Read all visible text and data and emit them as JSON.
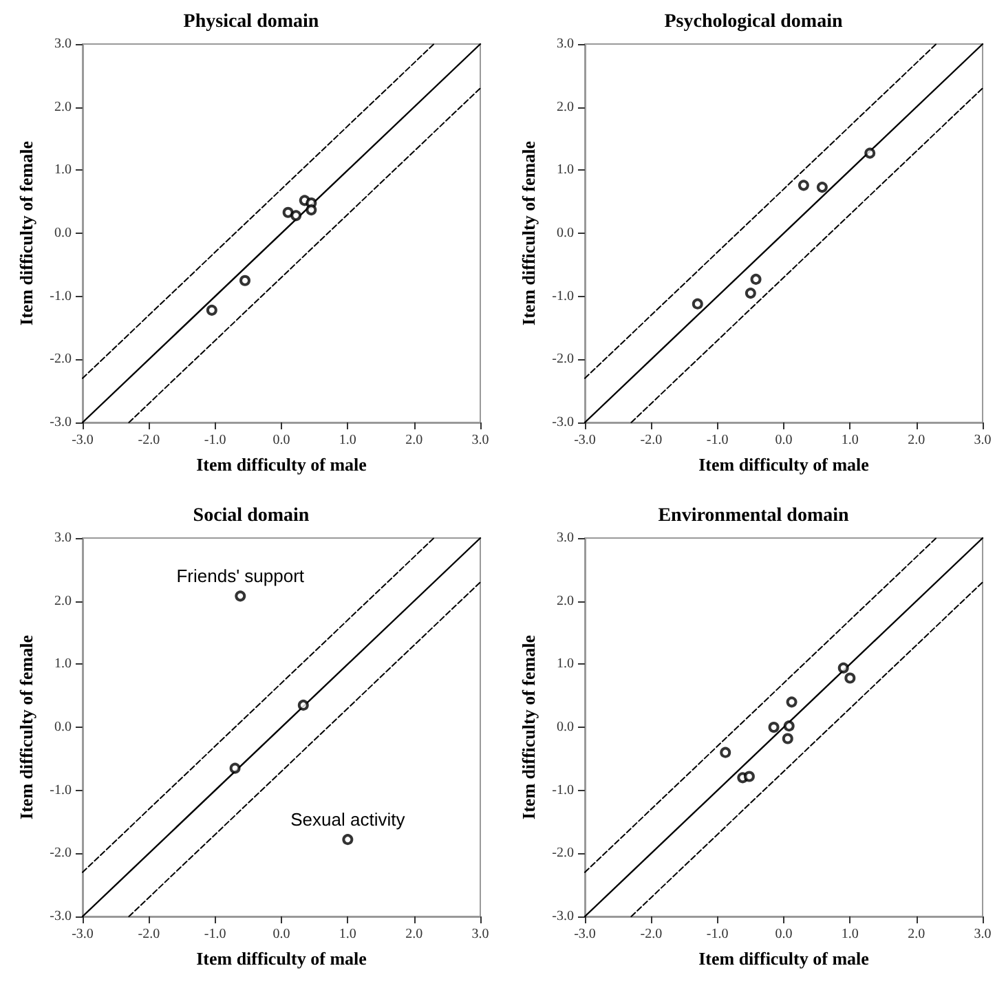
{
  "chart_data": [
    {
      "type": "scatter",
      "title": "Physical domain",
      "xlabel": "Item difficulty of male",
      "ylabel": "Item difficulty of female",
      "xlim": [
        -3,
        3
      ],
      "ylim": [
        -3,
        3
      ],
      "xticks": [
        {
          "value": -3,
          "label": "-3.0"
        },
        {
          "value": -2,
          "label": "-2.0"
        },
        {
          "value": -1,
          "label": "-1.0"
        },
        {
          "value": 0,
          "label": "0.0"
        },
        {
          "value": 1,
          "label": "1.0"
        },
        {
          "value": 2,
          "label": "2.0"
        },
        {
          "value": 3,
          "label": "3.0"
        }
      ],
      "yticks": [
        {
          "value": -3,
          "label": "-3.0"
        },
        {
          "value": -2,
          "label": "-2.0"
        },
        {
          "value": -1,
          "label": "-1.0"
        },
        {
          "value": 0,
          "label": "0.0"
        },
        {
          "value": 1,
          "label": "1.0"
        },
        {
          "value": 2,
          "label": "2.0"
        },
        {
          "value": 3,
          "label": "3.0"
        }
      ],
      "grid": false,
      "series": [
        {
          "marker": "circle",
          "color": "#000000",
          "x": [
            -1.05,
            -0.55,
            0.1,
            0.22,
            0.35,
            0.45,
            0.45
          ],
          "values": [
            -1.22,
            -0.75,
            0.33,
            0.28,
            0.52,
            0.48,
            0.37
          ]
        },
        {
          "type": "line",
          "line_style": "solid",
          "marker": "none",
          "color": "#000000",
          "x": [
            -3,
            3
          ],
          "values": [
            -3,
            3
          ]
        },
        {
          "type": "line",
          "line_style": "dashed",
          "marker": "none",
          "color": "#000000",
          "x": [
            -3,
            2.3
          ],
          "values": [
            -2.3,
            3
          ]
        },
        {
          "type": "line",
          "line_style": "dashed",
          "marker": "none",
          "color": "#000000",
          "x": [
            -2.3,
            3
          ],
          "values": [
            -3,
            2.3
          ]
        }
      ]
    },
    {
      "type": "scatter",
      "title": "Psychological domain",
      "xlabel": "Item difficulty of male",
      "ylabel": "Item difficulty of female",
      "xlim": [
        -3,
        3
      ],
      "ylim": [
        -3,
        3
      ],
      "xticks": [
        {
          "value": -3,
          "label": "-3.0"
        },
        {
          "value": -2,
          "label": "-2.0"
        },
        {
          "value": -1,
          "label": "-1.0"
        },
        {
          "value": 0,
          "label": "0.0"
        },
        {
          "value": 1,
          "label": "1.0"
        },
        {
          "value": 2,
          "label": "2.0"
        },
        {
          "value": 3,
          "label": "3.0"
        }
      ],
      "yticks": [
        {
          "value": -3,
          "label": "-3.0"
        },
        {
          "value": -2,
          "label": "-2.0"
        },
        {
          "value": -1,
          "label": "-1.0"
        },
        {
          "value": 0,
          "label": "0.0"
        },
        {
          "value": 1,
          "label": "1.0"
        },
        {
          "value": 2,
          "label": "2.0"
        },
        {
          "value": 3,
          "label": "3.0"
        }
      ],
      "grid": false,
      "series": [
        {
          "marker": "circle",
          "color": "#000000",
          "x": [
            -1.3,
            -0.5,
            -0.42,
            0.3,
            0.58,
            1.3
          ],
          "values": [
            -1.12,
            -0.95,
            -0.73,
            0.76,
            0.73,
            1.27
          ]
        },
        {
          "type": "line",
          "line_style": "solid",
          "marker": "none",
          "color": "#000000",
          "x": [
            -3,
            3
          ],
          "values": [
            -3,
            3
          ]
        },
        {
          "type": "line",
          "line_style": "dashed",
          "marker": "none",
          "color": "#000000",
          "x": [
            -3,
            2.3
          ],
          "values": [
            -2.3,
            3
          ]
        },
        {
          "type": "line",
          "line_style": "dashed",
          "marker": "none",
          "color": "#000000",
          "x": [
            -2.3,
            3
          ],
          "values": [
            -3,
            2.3
          ]
        }
      ]
    },
    {
      "type": "scatter",
      "title": "Social domain",
      "xlabel": "Item difficulty of male",
      "ylabel": "Item difficulty of female",
      "xlim": [
        -3,
        3
      ],
      "ylim": [
        -3,
        3
      ],
      "xticks": [
        {
          "value": -3,
          "label": "-3.0"
        },
        {
          "value": -2,
          "label": "-2.0"
        },
        {
          "value": -1,
          "label": "-1.0"
        },
        {
          "value": 0,
          "label": "0.0"
        },
        {
          "value": 1,
          "label": "1.0"
        },
        {
          "value": 2,
          "label": "2.0"
        },
        {
          "value": 3,
          "label": "3.0"
        }
      ],
      "yticks": [
        {
          "value": -3,
          "label": "-3.0"
        },
        {
          "value": -2,
          "label": "-2.0"
        },
        {
          "value": -1,
          "label": "-1.0"
        },
        {
          "value": 0,
          "label": "0.0"
        },
        {
          "value": 1,
          "label": "1.0"
        },
        {
          "value": 2,
          "label": "2.0"
        },
        {
          "value": 3,
          "label": "3.0"
        }
      ],
      "grid": false,
      "annotations": [
        {
          "text": "Friends' support",
          "x": -0.62,
          "y": 2.08
        },
        {
          "text": "Sexual activity",
          "x": 1.0,
          "y": -1.78
        }
      ],
      "series": [
        {
          "marker": "circle",
          "color": "#000000",
          "x": [
            -0.62,
            0.33,
            -0.7,
            1.0
          ],
          "values": [
            2.08,
            0.35,
            -0.65,
            -1.78
          ]
        },
        {
          "type": "line",
          "line_style": "solid",
          "marker": "none",
          "color": "#000000",
          "x": [
            -3,
            3
          ],
          "values": [
            -3,
            3
          ]
        },
        {
          "type": "line",
          "line_style": "dashed",
          "marker": "none",
          "color": "#000000",
          "x": [
            -3,
            2.3
          ],
          "values": [
            -2.3,
            3
          ]
        },
        {
          "type": "line",
          "line_style": "dashed",
          "marker": "none",
          "color": "#000000",
          "x": [
            -2.3,
            3
          ],
          "values": [
            -3,
            2.3
          ]
        }
      ]
    },
    {
      "type": "scatter",
      "title": "Environmental domain",
      "xlabel": "Item difficulty of male",
      "ylabel": "Item difficulty of female",
      "xlim": [
        -3,
        3
      ],
      "ylim": [
        -3,
        3
      ],
      "xticks": [
        {
          "value": -3,
          "label": "-3.0"
        },
        {
          "value": -2,
          "label": "-2.0"
        },
        {
          "value": -1,
          "label": "-1.0"
        },
        {
          "value": 0,
          "label": "0.0"
        },
        {
          "value": 1,
          "label": "1.0"
        },
        {
          "value": 2,
          "label": "2.0"
        },
        {
          "value": 3,
          "label": "3.0"
        }
      ],
      "yticks": [
        {
          "value": -3,
          "label": "-3.0"
        },
        {
          "value": -2,
          "label": "-2.0"
        },
        {
          "value": -1,
          "label": "-1.0"
        },
        {
          "value": 0,
          "label": "0.0"
        },
        {
          "value": 1,
          "label": "1.0"
        },
        {
          "value": 2,
          "label": "2.0"
        },
        {
          "value": 3,
          "label": "3.0"
        }
      ],
      "grid": false,
      "series": [
        {
          "marker": "circle",
          "color": "#000000",
          "x": [
            -0.88,
            -0.62,
            -0.52,
            -0.15,
            0.08,
            0.06,
            0.12,
            0.9,
            1.0
          ],
          "values": [
            -0.4,
            -0.8,
            -0.78,
            0.0,
            0.02,
            -0.18,
            0.4,
            0.94,
            0.78
          ]
        },
        {
          "type": "line",
          "line_style": "solid",
          "marker": "none",
          "color": "#000000",
          "x": [
            -3,
            3
          ],
          "values": [
            -3,
            3
          ]
        },
        {
          "type": "line",
          "line_style": "dashed",
          "marker": "none",
          "color": "#000000",
          "x": [
            -3,
            2.3
          ],
          "values": [
            -2.3,
            3
          ]
        },
        {
          "type": "line",
          "line_style": "dashed",
          "marker": "none",
          "color": "#000000",
          "x": [
            -2.3,
            3
          ],
          "values": [
            -3,
            2.3
          ]
        }
      ]
    }
  ]
}
